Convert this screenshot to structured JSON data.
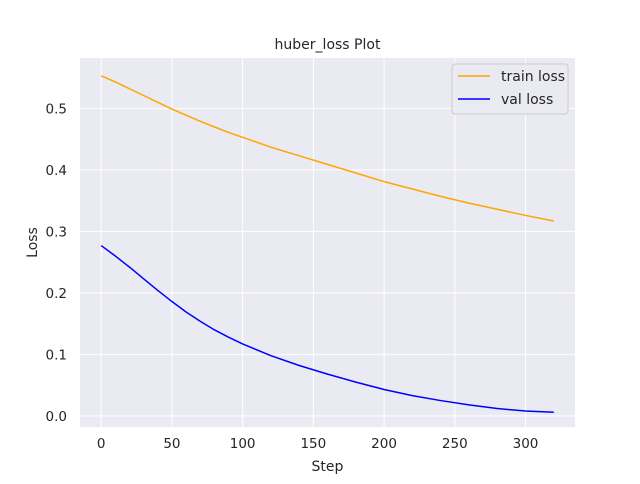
{
  "chart_data": {
    "type": "line",
    "title": "huber_loss Plot",
    "xlabel": "Step",
    "ylabel": "Loss",
    "xlim": [
      -15,
      335
    ],
    "ylim": [
      -0.018,
      0.582
    ],
    "xticks": [
      0,
      50,
      100,
      150,
      200,
      250,
      300
    ],
    "xtick_labels": [
      "0",
      "50",
      "100",
      "150",
      "200",
      "250",
      "300"
    ],
    "yticks": [
      0.0,
      0.1,
      0.2,
      0.3,
      0.4,
      0.5
    ],
    "ytick_labels": [
      "0.0",
      "0.1",
      "0.2",
      "0.3",
      "0.4",
      "0.5"
    ],
    "grid": true,
    "legend_position": "top-right",
    "series": [
      {
        "name": "train loss",
        "color": "#ffa500",
        "x": [
          0,
          10,
          20,
          30,
          40,
          50,
          60,
          70,
          80,
          90,
          100,
          120,
          140,
          160,
          180,
          200,
          220,
          240,
          260,
          280,
          300,
          320
        ],
        "y": [
          0.553,
          0.543,
          0.532,
          0.521,
          0.51,
          0.499,
          0.489,
          0.479,
          0.47,
          0.461,
          0.453,
          0.437,
          0.423,
          0.409,
          0.395,
          0.381,
          0.369,
          0.357,
          0.346,
          0.336,
          0.326,
          0.317
        ]
      },
      {
        "name": "val loss",
        "color": "#0000ff",
        "x": [
          0,
          10,
          20,
          30,
          40,
          50,
          60,
          70,
          80,
          90,
          100,
          120,
          140,
          160,
          180,
          200,
          220,
          240,
          260,
          280,
          300,
          320
        ],
        "y": [
          0.277,
          0.26,
          0.242,
          0.223,
          0.204,
          0.186,
          0.169,
          0.154,
          0.14,
          0.128,
          0.117,
          0.098,
          0.082,
          0.068,
          0.055,
          0.043,
          0.033,
          0.025,
          0.018,
          0.012,
          0.008,
          0.006
        ]
      }
    ]
  }
}
